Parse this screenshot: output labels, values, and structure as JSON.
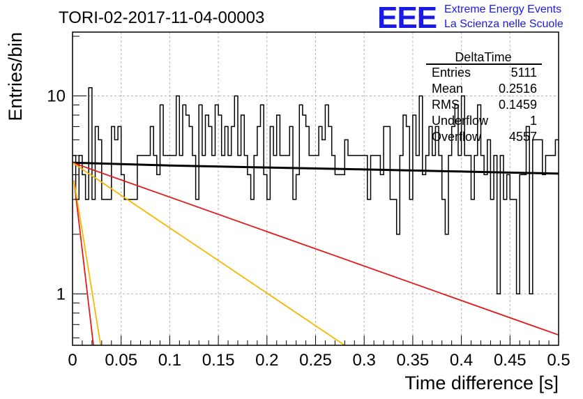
{
  "chart_data": {
    "type": "histogram",
    "title": "TORI-02-2017-11-04-00003",
    "xlabel": "Time difference [s]",
    "ylabel": "Entries/bin",
    "xlim": [
      0,
      0.5
    ],
    "ylim": [
      0.55,
      21
    ],
    "y_scale": "log",
    "grid": true,
    "x_ticks": [
      "0",
      "0.05",
      "0.1",
      "0.15",
      "0.2",
      "0.25",
      "0.3",
      "0.35",
      "0.4",
      "0.45",
      "0.5"
    ],
    "y_ticks": [
      "1",
      "10"
    ],
    "bin_width": 0.005,
    "bin_counts": [
      5,
      3,
      5,
      4,
      5,
      3,
      6,
      5,
      11,
      3,
      7,
      6,
      7,
      4,
      3,
      6,
      6,
      3,
      3,
      3,
      5,
      3,
      5,
      7,
      8,
      7,
      11,
      9,
      3,
      7,
      5,
      5,
      5,
      5,
      5,
      5,
      10,
      5,
      6,
      5,
      8,
      7,
      6,
      5,
      3,
      5,
      7,
      9,
      5,
      8,
      5,
      5,
      4,
      4,
      5,
      6,
      6,
      5,
      7,
      5,
      5,
      5,
      5,
      4,
      7,
      8,
      5,
      7,
      8,
      10,
      7,
      6,
      6,
      9,
      7,
      7,
      5,
      3,
      7,
      3,
      3,
      4,
      4,
      3,
      7,
      5,
      5,
      4,
      10,
      5,
      3,
      4,
      3,
      5,
      5,
      5,
      3,
      2,
      5,
      7,
      3,
      7,
      3,
      4,
      7,
      1,
      2,
      2,
      4,
      7,
      6,
      3,
      6,
      10,
      5,
      5,
      2,
      1,
      4,
      3,
      4,
      5,
      3,
      5,
      7,
      8,
      8,
      3,
      5,
      5,
      4,
      6,
      5,
      6,
      10,
      1,
      4,
      9,
      3,
      4,
      5,
      9,
      5,
      5,
      5,
      7,
      4,
      3,
      3,
      3,
      2,
      1,
      4,
      4,
      2,
      3,
      5,
      6,
      7,
      8,
      4,
      3,
      5,
      4,
      9,
      7,
      5,
      10,
      5,
      4,
      4,
      4,
      3,
      4,
      7,
      3,
      8,
      3,
      6,
      5,
      6,
      9,
      4,
      3,
      5,
      7,
      6,
      6,
      10,
      6,
      8,
      7,
      2,
      4,
      5,
      3,
      5,
      7,
      4,
      5,
      8,
      5,
      4,
      5,
      3,
      3,
      6,
      5,
      5,
      5,
      3,
      6,
      7,
      3,
      5,
      8,
      4,
      3,
      3,
      5,
      1,
      4,
      4,
      3,
      4,
      3,
      5,
      5,
      4,
      3,
      4,
      5,
      4,
      6,
      6,
      6,
      7,
      3,
      5,
      5,
      5,
      4,
      3,
      2,
      3,
      7,
      4,
      5,
      3,
      5,
      3,
      2,
      6,
      5,
      5,
      5,
      3,
      6,
      4,
      5,
      5,
      6,
      7,
      10,
      5,
      4,
      3,
      5,
      3,
      7,
      5,
      4,
      3,
      2,
      6,
      4,
      6,
      5,
      6,
      5,
      7,
      7,
      4,
      6,
      5,
      5,
      1,
      6,
      5,
      3,
      3,
      3,
      5,
      4,
      5,
      6,
      5,
      4,
      1,
      1,
      4,
      6,
      5,
      5,
      5,
      7,
      6,
      5,
      4,
      5,
      3,
      5,
      3,
      4,
      1,
      2,
      6,
      5,
      3,
      5,
      5,
      1,
      7,
      5,
      6,
      6,
      2,
      3,
      5,
      3,
      7,
      3,
      4,
      4,
      6,
      5,
      5,
      5,
      3,
      5,
      5,
      5,
      5,
      5,
      2,
      6,
      5,
      6,
      4,
      5,
      3,
      2,
      7,
      4,
      5,
      6,
      5,
      5,
      4,
      4,
      5,
      6,
      5,
      3,
      4,
      3,
      5,
      5,
      6,
      5,
      5,
      5,
      4,
      5,
      5,
      5,
      3,
      5,
      7,
      5,
      7,
      6,
      5,
      5,
      4,
      5,
      7,
      7,
      5,
      4,
      5,
      4,
      3,
      3,
      4,
      6,
      5,
      5,
      3,
      6,
      3,
      5,
      5,
      3,
      3,
      4,
      3,
      5,
      4,
      5,
      6,
      3,
      6,
      5,
      5,
      5,
      3,
      4,
      6,
      5,
      1,
      2,
      4,
      5,
      3,
      7,
      4,
      6,
      7
    ],
    "hist_bins_visible": [
      5,
      3,
      5,
      4,
      3,
      11,
      3,
      7,
      6,
      3,
      3,
      3,
      7,
      6,
      7,
      4,
      3,
      3,
      3,
      3,
      5,
      5,
      5,
      5,
      7,
      5,
      4,
      9,
      5,
      5,
      5,
      5,
      10,
      5,
      9,
      8,
      7,
      5,
      3,
      9,
      5,
      8,
      7,
      5,
      9,
      8,
      5,
      7,
      5,
      7,
      10,
      5,
      8,
      5,
      4,
      3,
      5,
      7,
      9,
      4,
      3,
      7,
      5,
      8,
      5,
      5,
      5,
      7,
      3,
      4,
      9,
      8,
      7,
      5,
      5,
      5,
      7,
      6,
      9,
      7,
      5,
      4,
      4,
      4,
      6,
      5,
      5,
      5,
      5,
      5,
      5,
      3,
      5,
      5,
      5,
      4,
      7,
      7,
      3,
      3,
      2,
      5,
      8,
      7,
      3,
      8,
      5,
      10,
      4,
      5,
      7,
      5,
      7,
      5,
      3,
      2,
      5,
      7,
      9,
      5,
      10,
      5,
      5,
      3,
      5,
      9,
      5,
      4,
      6,
      3,
      5,
      1,
      5,
      3,
      4,
      3,
      3,
      1,
      4,
      4,
      7,
      1,
      6,
      6,
      6,
      4,
      5,
      5,
      5,
      6
    ],
    "series": [
      {
        "type": "line",
        "color": "#000000",
        "points": [
          [
            0,
            4.6
          ],
          [
            0.1,
            4.45
          ],
          [
            0.2,
            4.35
          ],
          [
            0.3,
            4.25
          ],
          [
            0.4,
            4.15
          ],
          [
            0.5,
            4.05
          ]
        ]
      },
      {
        "type": "line",
        "color": "#e31a1a",
        "points": [
          [
            0,
            4.6
          ],
          [
            0.5,
            0.62
          ]
        ]
      },
      {
        "type": "line",
        "color": "#f5b800",
        "points": [
          [
            0,
            4.6
          ],
          [
            0.28,
            0.55
          ]
        ]
      },
      {
        "type": "line",
        "color": "#e31a1a",
        "points": [
          [
            0.0015,
            3.75
          ],
          [
            0.0215,
            0.55
          ]
        ]
      },
      {
        "type": "line",
        "color": "#f5b800",
        "points": [
          [
            0.0015,
            3.75
          ],
          [
            0.029,
            0.55
          ]
        ]
      }
    ]
  },
  "stats": {
    "name": "DeltaTime",
    "rows": [
      {
        "label": "Entries",
        "value": "5111"
      },
      {
        "label": "Mean",
        "value": "0.2516"
      },
      {
        "label": "RMS",
        "value": "0.1459"
      },
      {
        "label": "Underflow",
        "value": "1"
      },
      {
        "label": "Overflow",
        "value": "4557"
      }
    ]
  },
  "logo": {
    "mark": "EEE",
    "line1": "Extreme Energy Events",
    "line2": "La Scienza nelle Scuole"
  }
}
